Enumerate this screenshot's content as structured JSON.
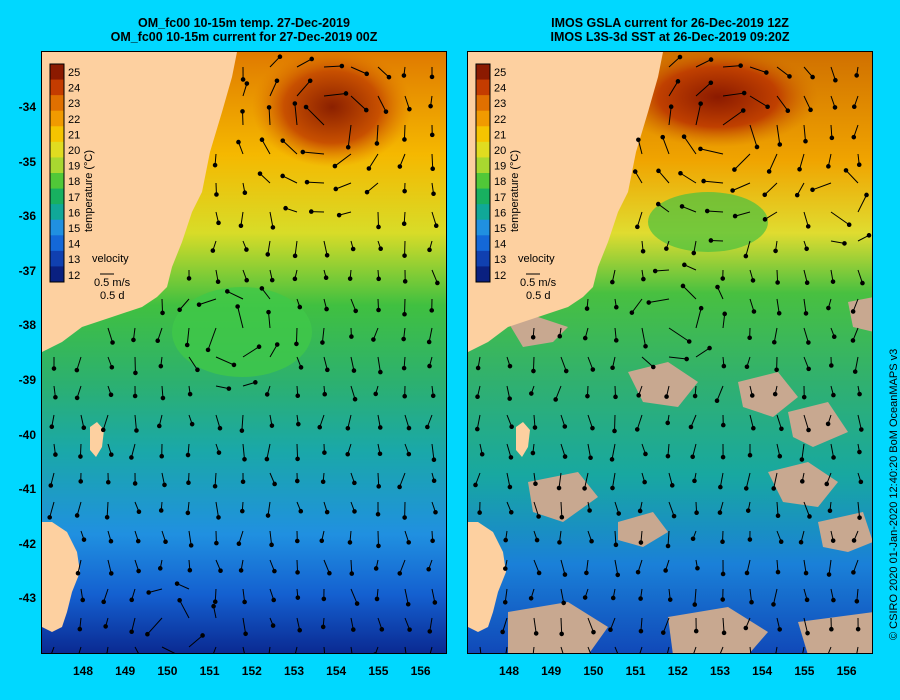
{
  "panels": [
    {
      "title_line1": "OM_fc00 10-15m temp. 27-Dec-2019",
      "title_line2": "OM_fc00 10-15m current for 27-Dec-2019 00Z",
      "kind": "model"
    },
    {
      "title_line1": "IMOS GSLA current for 26-Dec-2019 12Z",
      "title_line2": "IMOS L3S-3d SST at 26-Dec-2019 09:20Z",
      "kind": "observed"
    }
  ],
  "colorbar": {
    "label": "temperature (°C)",
    "ticks": [
      "25",
      "24",
      "23",
      "22",
      "21",
      "20",
      "19",
      "18",
      "17",
      "16",
      "15",
      "14",
      "13",
      "12"
    ],
    "colors": [
      "#8b1a00",
      "#c43c00",
      "#e07000",
      "#f09a00",
      "#f5c400",
      "#e0dc20",
      "#a8d830",
      "#50c838",
      "#18b060",
      "#10a898",
      "#2090e0",
      "#1468d8",
      "#1040b0",
      "#0a2080"
    ]
  },
  "velocity_key": {
    "label": "velocity",
    "speed": "0.5 m/s",
    "scale": "0.5 d"
  },
  "lat_ticks": [
    "-34",
    "-35",
    "-36",
    "-37",
    "-38",
    "-39",
    "-40",
    "-41",
    "-42",
    "-43"
  ],
  "lon_ticks": [
    "148",
    "149",
    "150",
    "151",
    "152",
    "153",
    "154",
    "155",
    "156"
  ],
  "credit": "© CSIRO 2020   01-Jan-2020 12:40:20 BoM OceanMAPS v3",
  "colors": {
    "background": "#00d8ff",
    "land": "#fdd0a0",
    "missing": "#c8a890"
  }
}
